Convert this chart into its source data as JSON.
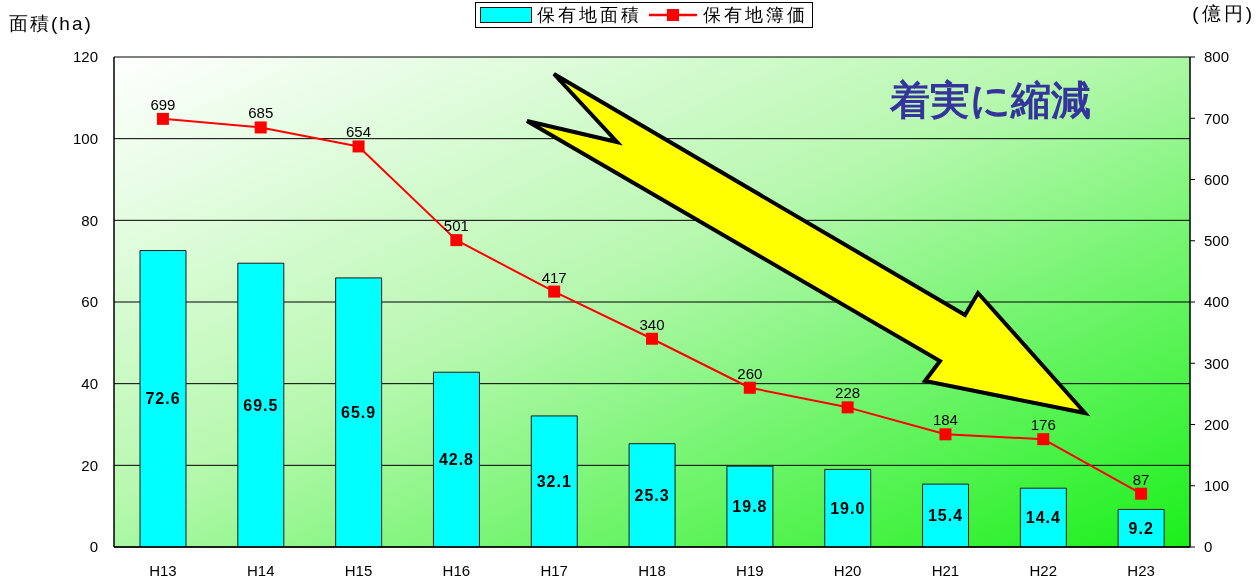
{
  "chart_data": {
    "type": "bar",
    "ylabel": "面積(ha)",
    "y2label": "(億円)",
    "annotations": [
      "着実に縮減"
    ],
    "categories": [
      "H13",
      "H14",
      "H15",
      "H16",
      "H17",
      "H18",
      "H19",
      "H20",
      "H21",
      "H22",
      "H23"
    ],
    "series": [
      {
        "name": "保有地面積",
        "color": "#00ffff",
        "values": [
          72.6,
          69.5,
          65.9,
          42.8,
          32.1,
          25.3,
          19.8,
          19.0,
          15.4,
          14.4,
          9.2
        ],
        "value_labels": [
          "72.6",
          "69.5",
          "65.9",
          "42.8",
          "32.1",
          "25.3",
          "19.8",
          "19.0",
          "15.4",
          "14.4",
          "9.2"
        ]
      },
      {
        "name": "保有地簿価",
        "type": "line",
        "axis": "y2",
        "color": "#ff0000",
        "marker": "square",
        "values": [
          699,
          685,
          654,
          501,
          417,
          340,
          260,
          228,
          184,
          176,
          87
        ],
        "value_labels": [
          "699",
          "685",
          "654",
          "501",
          "417",
          "340",
          "260",
          "228",
          "184",
          "176",
          "87"
        ]
      }
    ],
    "ylim": [
      0,
      120
    ],
    "yticks": [
      0,
      20,
      40,
      60,
      80,
      100,
      120
    ],
    "y2lim": [
      0,
      800
    ],
    "y2ticks": [
      0,
      100,
      200,
      300,
      400,
      500,
      600,
      700,
      800
    ],
    "grid": "y",
    "legend": "top"
  }
}
